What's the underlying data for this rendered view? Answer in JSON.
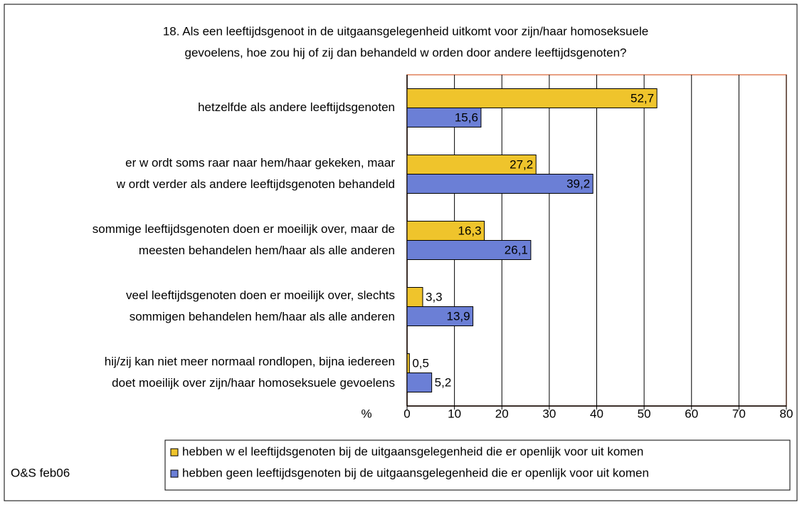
{
  "chart_data": {
    "type": "bar",
    "orientation": "horizontal",
    "title": [
      "18. Als een leeftijdsgenoot in de uitgaansgelegenheid uitkomt voor zijn/haar homoseksuele",
      "gevoelens, hoe zou hij of zij dan behandeld w orden door andere leeftijdsgenoten?"
    ],
    "categories": [
      [
        "hetzelfde als andere leeftijdsgenoten"
      ],
      [
        "er w ordt soms raar naar hem/haar gekeken, maar",
        "w ordt verder als andere leeftijdsgenoten behandeld"
      ],
      [
        "sommige leeftijdsgenoten doen er moeilijk over, maar de",
        "meesten behandelen hem/haar als alle anderen"
      ],
      [
        "veel leeftijdsgenoten doen er moeilijk over, slechts",
        "sommigen behandelen hem/haar als alle anderen"
      ],
      [
        "hij/zij kan niet meer normaal rondlopen, bijna iedereen",
        "doet moeilijk over zijn/haar homoseksuele gevoelens"
      ]
    ],
    "series": [
      {
        "name": "hebben w el leeftijdsgenoten bij de uitgaansgelegenheid die er openlijk voor uit komen",
        "color": "#efc42c",
        "label_color": "#000000",
        "values": [
          52.7,
          27.2,
          16.3,
          3.3,
          0.5
        ],
        "value_labels": [
          "52,7",
          "27,2",
          "16,3",
          "3,3",
          "0,5"
        ]
      },
      {
        "name": "hebben geen leeftijdsgenoten bij de uitgaansgelegenheid die er openlijk voor uit komen",
        "color": "#6b7fd6",
        "label_color": "#ffffff",
        "values": [
          15.6,
          39.2,
          26.1,
          13.9,
          5.2
        ],
        "value_labels": [
          "15,6",
          "39,2",
          "26,1",
          "13,9",
          "5,2"
        ]
      }
    ],
    "xlabel": "%",
    "xlim": [
      0,
      80
    ],
    "xticks": [
      0,
      10,
      20,
      30,
      40,
      50,
      60,
      70,
      80
    ],
    "grid": true,
    "source": "O&S feb06"
  }
}
